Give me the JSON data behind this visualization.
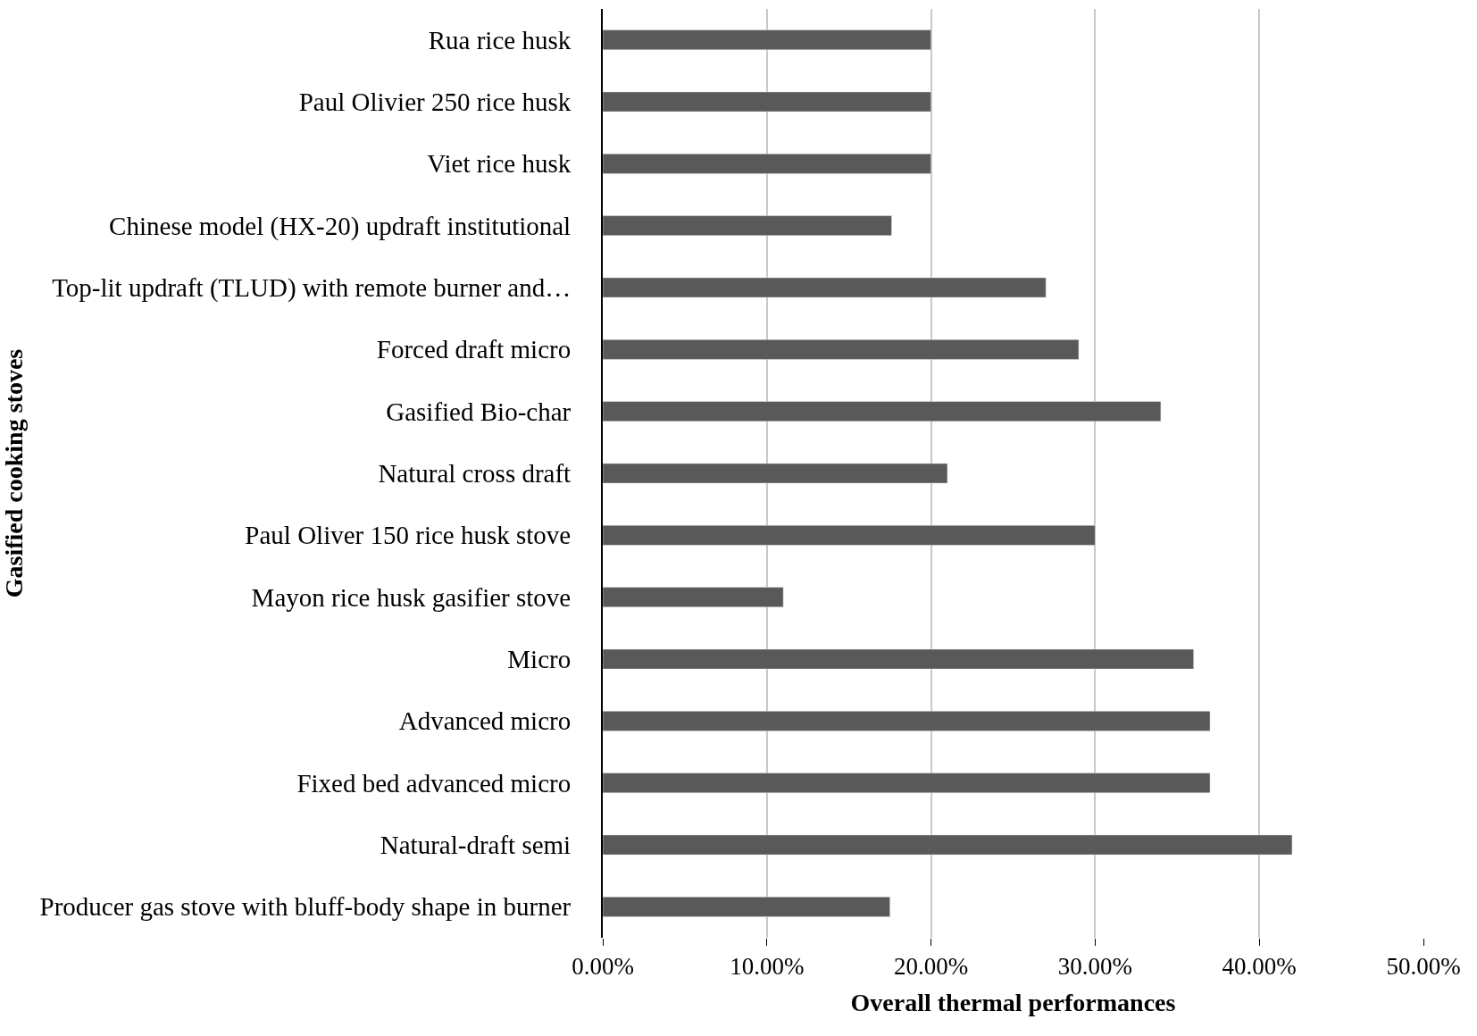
{
  "chart_data": {
    "type": "bar",
    "orientation": "horizontal",
    "xlabel": "Overall thermal performances",
    "ylabel": "Gasified cooking stoves",
    "categories": [
      "Rua rice husk",
      "Paul Olivier 250 rice husk",
      "Viet rice husk",
      "Chinese model (HX-20) updraft institutional",
      "Top-lit updraft (TLUD) with remote burner and…",
      "Forced draft micro",
      "Gasified Bio-char",
      "Natural cross draft",
      "Paul Oliver 150 rice husk stove",
      "Mayon rice husk gasifier stove",
      "Micro",
      "Advanced micro",
      "Fixed bed advanced micro",
      "Natural-draft semi",
      "Producer gas stove with bluff-body shape in burner"
    ],
    "values": [
      20,
      20,
      20,
      17.6,
      27,
      29,
      34,
      21,
      30,
      11,
      36,
      37,
      37,
      42,
      17.5
    ],
    "color": "#595959",
    "xlim": [
      0,
      50
    ],
    "xticks": [
      {
        "value": 0,
        "label": "0.00%"
      },
      {
        "value": 10,
        "label": "10.00%"
      },
      {
        "value": 20,
        "label": "20.00%"
      },
      {
        "value": 30,
        "label": "30.00%"
      },
      {
        "value": 40,
        "label": "40.00%"
      },
      {
        "value": 50,
        "label": "50.00%"
      }
    ],
    "grid": "x"
  }
}
